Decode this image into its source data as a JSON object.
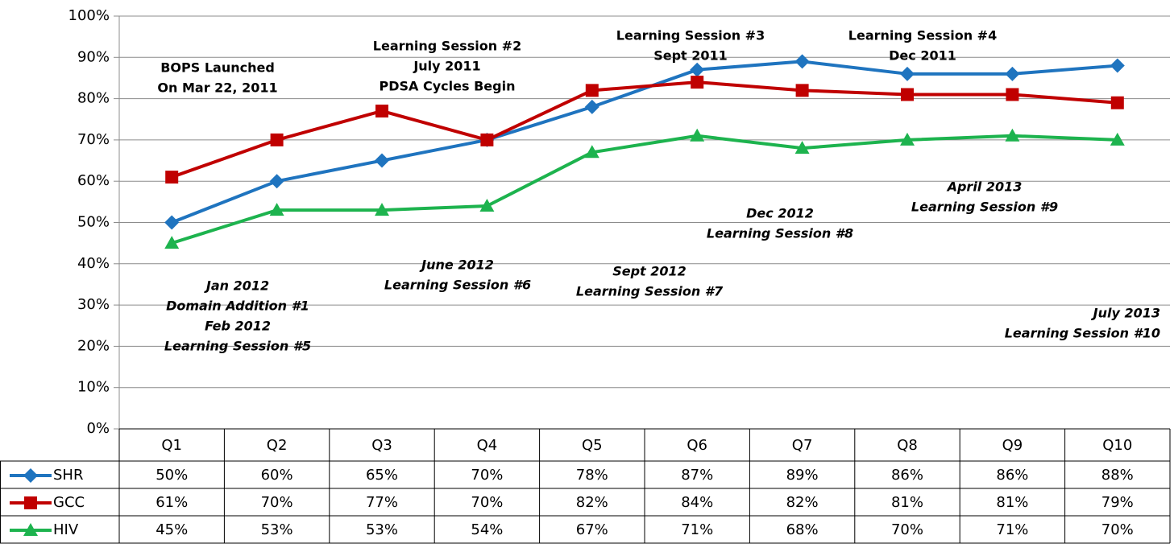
{
  "chart_data": {
    "type": "line",
    "categories": [
      "Q1",
      "Q2",
      "Q3",
      "Q4",
      "Q5",
      "Q6",
      "Q7",
      "Q8",
      "Q9",
      "Q10"
    ],
    "series": [
      {
        "name": "SHR",
        "color": "#1f74bf",
        "marker": "diamond",
        "values": [
          50,
          60,
          65,
          70,
          78,
          87,
          89,
          86,
          86,
          88
        ],
        "value_labels": [
          "50%",
          "60%",
          "65%",
          "70%",
          "78%",
          "87%",
          "89%",
          "86%",
          "86%",
          "88%"
        ]
      },
      {
        "name": "GCC",
        "color": "#c00000",
        "marker": "square",
        "values": [
          61,
          70,
          77,
          70,
          82,
          84,
          82,
          81,
          81,
          79
        ],
        "value_labels": [
          "61%",
          "70%",
          "77%",
          "70%",
          "82%",
          "84%",
          "82%",
          "81%",
          "81%",
          "79%"
        ]
      },
      {
        "name": "HIV",
        "color": "#1db34e",
        "marker": "triangle",
        "values": [
          45,
          53,
          53,
          54,
          67,
          71,
          68,
          70,
          71,
          70
        ],
        "value_labels": [
          "45%",
          "53%",
          "53%",
          "54%",
          "67%",
          "71%",
          "68%",
          "70%",
          "71%",
          "70%"
        ]
      }
    ],
    "ylim": [
      0,
      100
    ],
    "yticks": [
      {
        "value": 0,
        "label": "0%"
      },
      {
        "value": 10,
        "label": "10%"
      },
      {
        "value": 20,
        "label": "20%"
      },
      {
        "value": 30,
        "label": "30%"
      },
      {
        "value": 40,
        "label": "40%"
      },
      {
        "value": 50,
        "label": "50%"
      },
      {
        "value": 60,
        "label": "60%"
      },
      {
        "value": 70,
        "label": "70%"
      },
      {
        "value": 80,
        "label": "80%"
      },
      {
        "value": 90,
        "label": "90%"
      },
      {
        "value": 100,
        "label": "100%"
      }
    ],
    "grid": true,
    "annotations": [
      [
        "BOPS Launched",
        "On Mar 22, 2011"
      ],
      [
        "Learning Session #2",
        "July 2011",
        "PDSA Cycles Begin"
      ],
      [
        "Learning Session #3",
        "Sept 2011"
      ],
      [
        "Learning Session #4",
        "Dec 2011"
      ],
      [
        "Jan 2012",
        "Domain Addition #1",
        "Feb 2012",
        "Learning Session #5"
      ],
      [
        "June 2012",
        "Learning Session #6"
      ],
      [
        "Sept 2012",
        "Learning Session #7"
      ],
      [
        "Dec 2012",
        "Learning Session #8"
      ],
      [
        "April 2013",
        "Learning Session #9"
      ],
      [
        "July 2013",
        "Learning Session #10"
      ]
    ]
  }
}
